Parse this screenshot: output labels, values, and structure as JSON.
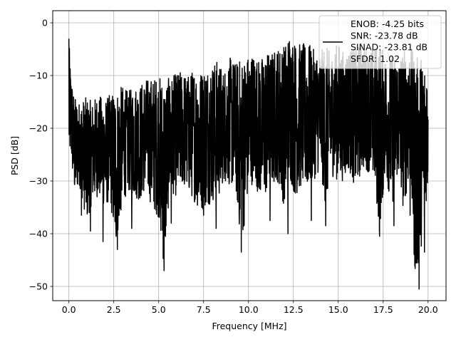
{
  "chart_data": {
    "type": "line",
    "title": "",
    "xlabel": "Frequency [MHz]",
    "ylabel": "PSD [dB]",
    "xlim": [
      -0.9,
      21.0
    ],
    "ylim": [
      -52.7,
      2.3
    ],
    "xticks": [
      0.0,
      2.5,
      5.0,
      7.5,
      10.0,
      12.5,
      15.0,
      17.5,
      20.0
    ],
    "xtick_labels": [
      "0.0",
      "2.5",
      "5.0",
      "7.5",
      "10.0",
      "12.5",
      "15.0",
      "17.5",
      "20.0"
    ],
    "yticks": [
      0,
      -10,
      -20,
      -30,
      -40,
      -50
    ],
    "ytick_labels": [
      "0",
      "−10",
      "−20",
      "−30",
      "−40",
      "−50"
    ],
    "grid": true,
    "legend_position": "top-right",
    "legend_entries": [
      "ENOB: -4.25 bits",
      "SNR: -23.78 dB",
      "SINAD: -23.81 dB",
      "SFDR: 1.02"
    ],
    "series": [
      {
        "color": "#000000",
        "summary_x": [
          0.0,
          0.1,
          0.3,
          0.6,
          1.0,
          1.3,
          1.6,
          2.0,
          2.3,
          2.6,
          3.0,
          3.3,
          3.6,
          4.0,
          4.3,
          4.6,
          5.0,
          5.3,
          5.6,
          6.0,
          6.3,
          6.6,
          7.0,
          7.3,
          7.6,
          8.0,
          8.3,
          8.6,
          9.0,
          9.3,
          9.6,
          10.0,
          10.3,
          10.6,
          11.0,
          11.3,
          11.6,
          12.0,
          12.3,
          12.6,
          13.0,
          13.3,
          13.6,
          14.0,
          14.3,
          14.6,
          15.0,
          15.3,
          15.6,
          16.0,
          16.3,
          16.6,
          17.0,
          17.3,
          17.6,
          18.0,
          18.3,
          18.6,
          19.0,
          19.3,
          19.6,
          20.0
        ],
        "upper": [
          -3.0,
          -9.0,
          -14.0,
          -15.0,
          -14.0,
          -15.0,
          -13.5,
          -14.5,
          -13.5,
          -12.5,
          -12.0,
          -13.0,
          -12.0,
          -11.5,
          -10.5,
          -10.5,
          -10.0,
          -10.5,
          -10.5,
          -9.5,
          -9.0,
          -10.0,
          -8.5,
          -9.0,
          -8.0,
          -7.5,
          -7.0,
          -9.0,
          -6.5,
          -7.5,
          -6.5,
          -6.0,
          -5.5,
          -7.0,
          -5.5,
          -5.5,
          -4.5,
          -4.0,
          -1.5,
          -3.5,
          -4.0,
          -3.5,
          -5.0,
          -5.5,
          -4.0,
          -6.0,
          -3.5,
          -5.5,
          -4.5,
          -5.0,
          -3.0,
          -5.0,
          -4.5,
          -3.5,
          -6.0,
          -6.0,
          -6.0,
          -5.0,
          -4.5,
          -6.5,
          -6.0,
          -8.5
        ],
        "lower": [
          -27.0,
          -25.0,
          -33.0,
          -31.0,
          -38.0,
          -34.0,
          -33.0,
          -35.0,
          -34.0,
          -43.0,
          -34.0,
          -32.0,
          -33.0,
          -34.0,
          -31.0,
          -35.0,
          -37.0,
          -47.0,
          -32.0,
          -33.0,
          -31.0,
          -32.0,
          -34.0,
          -36.0,
          -35.0,
          -34.0,
          -34.0,
          -30.0,
          -31.0,
          -32.0,
          -43.0,
          -32.0,
          -30.0,
          -33.0,
          -33.0,
          -31.0,
          -30.0,
          -35.0,
          -30.0,
          -33.0,
          -31.0,
          -32.0,
          -30.0,
          -28.0,
          -35.0,
          -29.0,
          -30.0,
          -30.0,
          -28.0,
          -32.0,
          -28.0,
          -28.0,
          -30.0,
          -40.0,
          -29.0,
          -35.0,
          -29.0,
          -35.0,
          -30.0,
          -50.0,
          -43.0,
          -31.0
        ],
        "dips": [
          [
            0.7,
            -36.5
          ],
          [
            1.2,
            -39.5
          ],
          [
            1.9,
            -41.5
          ],
          [
            2.7,
            -43.0
          ],
          [
            3.5,
            -39.0
          ],
          [
            5.3,
            -47.0
          ],
          [
            5.7,
            -38.0
          ],
          [
            7.5,
            -36.5
          ],
          [
            8.2,
            -39.0
          ],
          [
            9.6,
            -43.5
          ],
          [
            11.2,
            -37.5
          ],
          [
            12.2,
            -40.0
          ],
          [
            13.5,
            -37.5
          ],
          [
            14.3,
            -38.5
          ],
          [
            17.3,
            -40.5
          ],
          [
            18.1,
            -38.5
          ],
          [
            19.0,
            -36.5
          ],
          [
            19.5,
            -50.5
          ],
          [
            19.8,
            -43.5
          ]
        ]
      }
    ]
  }
}
